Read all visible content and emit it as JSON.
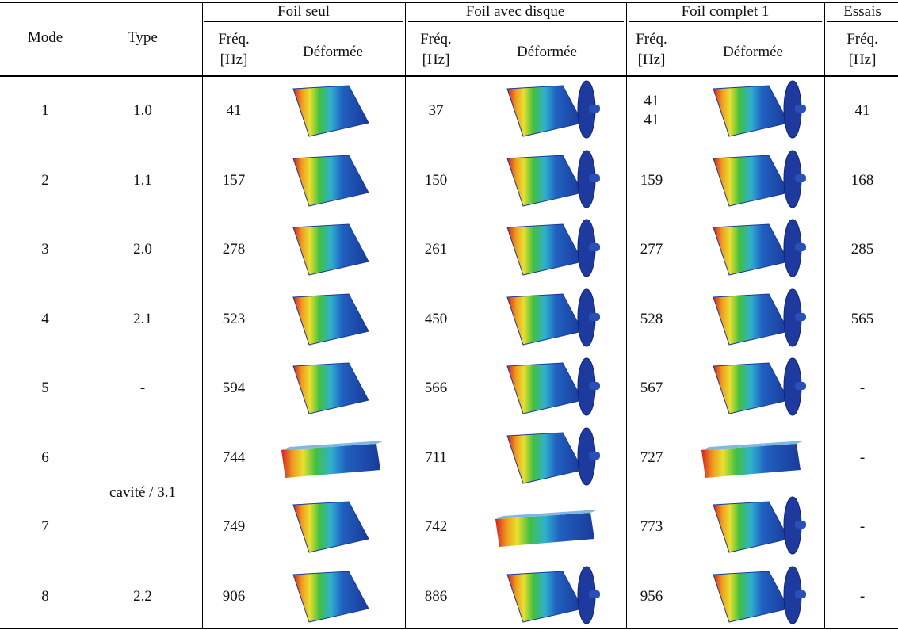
{
  "table": {
    "groups": [
      "Foil seul",
      "Foil avec disque",
      "Foil complet 1",
      "Essais"
    ],
    "columns": [
      "Mode",
      "Type",
      "Fréq. [Hz]",
      "Déformée",
      "Fréq. [Hz]",
      "Déformée",
      "Fréq. [Hz]",
      "Déformée",
      "Fréq. [Hz]"
    ],
    "rows": [
      {
        "mode": "1",
        "type": "1.0",
        "foil_seul": "41",
        "avec_disque": "37",
        "complet": [
          "41",
          "41"
        ],
        "essais": "41"
      },
      {
        "mode": "2",
        "type": "1.1",
        "foil_seul": "157",
        "avec_disque": "150",
        "complet": [
          "159"
        ],
        "essais": "168"
      },
      {
        "mode": "3",
        "type": "2.0",
        "foil_seul": "278",
        "avec_disque": "261",
        "complet": [
          "277"
        ],
        "essais": "285"
      },
      {
        "mode": "4",
        "type": "2.1",
        "foil_seul": "523",
        "avec_disque": "450",
        "complet": [
          "528"
        ],
        "essais": "565"
      },
      {
        "mode": "5",
        "type": "-",
        "foil_seul": "594",
        "avec_disque": "566",
        "complet": [
          "567"
        ],
        "essais": "-"
      },
      {
        "mode": "6",
        "type": "cavité / 3.1",
        "foil_seul": "744",
        "avec_disque": "711",
        "complet": [
          "727"
        ],
        "essais": "-"
      },
      {
        "mode": "7",
        "type": null,
        "foil_seul": "749",
        "avec_disque": "742",
        "complet": [
          "773"
        ],
        "essais": "-"
      },
      {
        "mode": "8",
        "type": "2.2",
        "foil_seul": "906",
        "avec_disque": "886",
        "complet": [
          "956"
        ],
        "essais": "-"
      }
    ]
  }
}
